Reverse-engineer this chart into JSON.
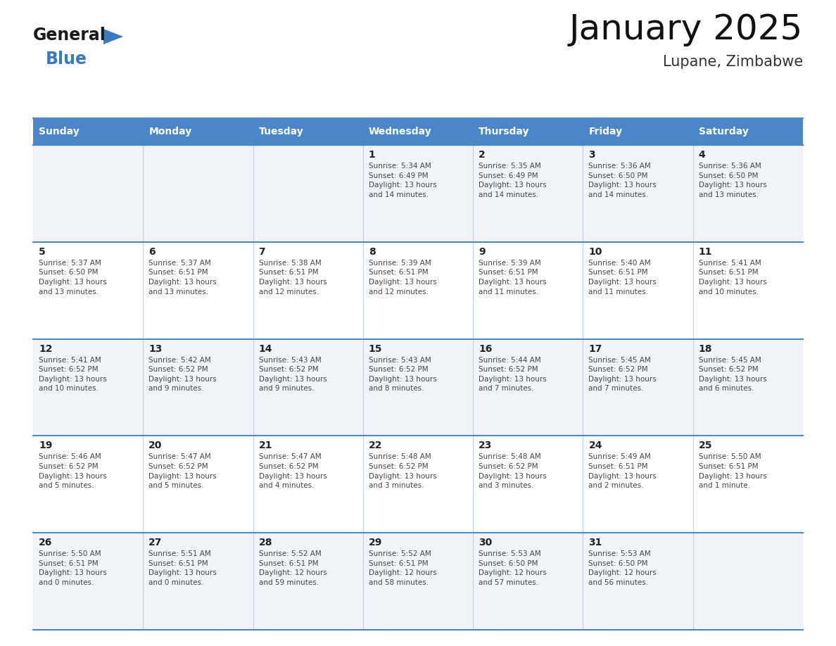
{
  "title": "January 2025",
  "subtitle": "Lupane, Zimbabwe",
  "header_bg": "#4a86c8",
  "header_text_color": "#ffffff",
  "weekdays": [
    "Sunday",
    "Monday",
    "Tuesday",
    "Wednesday",
    "Thursday",
    "Friday",
    "Saturday"
  ],
  "row_bg_odd": "#f0f4f8",
  "row_bg_even": "#ffffff",
  "cell_text_color": "#444444",
  "day_number_color": "#222222",
  "border_color": "#4a86c8",
  "grid_line_color": "#c0cfe0",
  "logo_general_color": "#1a1a1a",
  "logo_blue_color": "#3a7abf",
  "background": "#ffffff",
  "title_fontsize": 36,
  "subtitle_fontsize": 15,
  "header_fontsize": 10,
  "day_num_fontsize": 10,
  "cell_fontsize": 7.5,
  "calendar": [
    [
      {
        "day": "",
        "text": ""
      },
      {
        "day": "",
        "text": ""
      },
      {
        "day": "",
        "text": ""
      },
      {
        "day": "1",
        "text": "Sunrise: 5:34 AM\nSunset: 6:49 PM\nDaylight: 13 hours\nand 14 minutes."
      },
      {
        "day": "2",
        "text": "Sunrise: 5:35 AM\nSunset: 6:49 PM\nDaylight: 13 hours\nand 14 minutes."
      },
      {
        "day": "3",
        "text": "Sunrise: 5:36 AM\nSunset: 6:50 PM\nDaylight: 13 hours\nand 14 minutes."
      },
      {
        "day": "4",
        "text": "Sunrise: 5:36 AM\nSunset: 6:50 PM\nDaylight: 13 hours\nand 13 minutes."
      }
    ],
    [
      {
        "day": "5",
        "text": "Sunrise: 5:37 AM\nSunset: 6:50 PM\nDaylight: 13 hours\nand 13 minutes."
      },
      {
        "day": "6",
        "text": "Sunrise: 5:37 AM\nSunset: 6:51 PM\nDaylight: 13 hours\nand 13 minutes."
      },
      {
        "day": "7",
        "text": "Sunrise: 5:38 AM\nSunset: 6:51 PM\nDaylight: 13 hours\nand 12 minutes."
      },
      {
        "day": "8",
        "text": "Sunrise: 5:39 AM\nSunset: 6:51 PM\nDaylight: 13 hours\nand 12 minutes."
      },
      {
        "day": "9",
        "text": "Sunrise: 5:39 AM\nSunset: 6:51 PM\nDaylight: 13 hours\nand 11 minutes."
      },
      {
        "day": "10",
        "text": "Sunrise: 5:40 AM\nSunset: 6:51 PM\nDaylight: 13 hours\nand 11 minutes."
      },
      {
        "day": "11",
        "text": "Sunrise: 5:41 AM\nSunset: 6:51 PM\nDaylight: 13 hours\nand 10 minutes."
      }
    ],
    [
      {
        "day": "12",
        "text": "Sunrise: 5:41 AM\nSunset: 6:52 PM\nDaylight: 13 hours\nand 10 minutes."
      },
      {
        "day": "13",
        "text": "Sunrise: 5:42 AM\nSunset: 6:52 PM\nDaylight: 13 hours\nand 9 minutes."
      },
      {
        "day": "14",
        "text": "Sunrise: 5:43 AM\nSunset: 6:52 PM\nDaylight: 13 hours\nand 9 minutes."
      },
      {
        "day": "15",
        "text": "Sunrise: 5:43 AM\nSunset: 6:52 PM\nDaylight: 13 hours\nand 8 minutes."
      },
      {
        "day": "16",
        "text": "Sunrise: 5:44 AM\nSunset: 6:52 PM\nDaylight: 13 hours\nand 7 minutes."
      },
      {
        "day": "17",
        "text": "Sunrise: 5:45 AM\nSunset: 6:52 PM\nDaylight: 13 hours\nand 7 minutes."
      },
      {
        "day": "18",
        "text": "Sunrise: 5:45 AM\nSunset: 6:52 PM\nDaylight: 13 hours\nand 6 minutes."
      }
    ],
    [
      {
        "day": "19",
        "text": "Sunrise: 5:46 AM\nSunset: 6:52 PM\nDaylight: 13 hours\nand 5 minutes."
      },
      {
        "day": "20",
        "text": "Sunrise: 5:47 AM\nSunset: 6:52 PM\nDaylight: 13 hours\nand 5 minutes."
      },
      {
        "day": "21",
        "text": "Sunrise: 5:47 AM\nSunset: 6:52 PM\nDaylight: 13 hours\nand 4 minutes."
      },
      {
        "day": "22",
        "text": "Sunrise: 5:48 AM\nSunset: 6:52 PM\nDaylight: 13 hours\nand 3 minutes."
      },
      {
        "day": "23",
        "text": "Sunrise: 5:48 AM\nSunset: 6:52 PM\nDaylight: 13 hours\nand 3 minutes."
      },
      {
        "day": "24",
        "text": "Sunrise: 5:49 AM\nSunset: 6:51 PM\nDaylight: 13 hours\nand 2 minutes."
      },
      {
        "day": "25",
        "text": "Sunrise: 5:50 AM\nSunset: 6:51 PM\nDaylight: 13 hours\nand 1 minute."
      }
    ],
    [
      {
        "day": "26",
        "text": "Sunrise: 5:50 AM\nSunset: 6:51 PM\nDaylight: 13 hours\nand 0 minutes."
      },
      {
        "day": "27",
        "text": "Sunrise: 5:51 AM\nSunset: 6:51 PM\nDaylight: 13 hours\nand 0 minutes."
      },
      {
        "day": "28",
        "text": "Sunrise: 5:52 AM\nSunset: 6:51 PM\nDaylight: 12 hours\nand 59 minutes."
      },
      {
        "day": "29",
        "text": "Sunrise: 5:52 AM\nSunset: 6:51 PM\nDaylight: 12 hours\nand 58 minutes."
      },
      {
        "day": "30",
        "text": "Sunrise: 5:53 AM\nSunset: 6:50 PM\nDaylight: 12 hours\nand 57 minutes."
      },
      {
        "day": "31",
        "text": "Sunrise: 5:53 AM\nSunset: 6:50 PM\nDaylight: 12 hours\nand 56 minutes."
      },
      {
        "day": "",
        "text": ""
      }
    ]
  ]
}
